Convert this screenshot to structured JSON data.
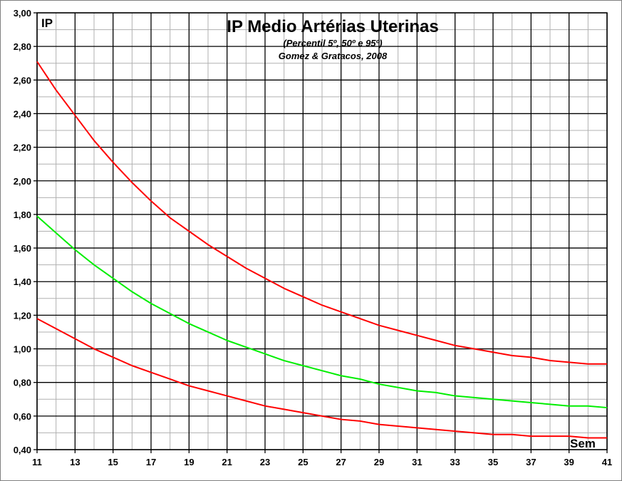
{
  "chart_data": {
    "type": "line",
    "title": "IP Medio Artérias Uterinas",
    "subtitle": "(Percentil 5º, 50º e 95º)",
    "source": "Gomez & Gratacos, 2008",
    "ylabel": "IP",
    "xlabel": "Sem",
    "xlim": [
      11,
      41
    ],
    "ylim": [
      0.4,
      3.0
    ],
    "x_ticks": [
      "11",
      "13",
      "15",
      "17",
      "19",
      "21",
      "23",
      "25",
      "27",
      "29",
      "31",
      "33",
      "35",
      "37",
      "39",
      "41"
    ],
    "y_ticks": [
      "0,40",
      "0,60",
      "0,80",
      "1,00",
      "1,20",
      "1,40",
      "1,60",
      "1,80",
      "2,00",
      "2,20",
      "2,40",
      "2,60",
      "2,80",
      "3,00"
    ],
    "x_minor_grid_step": 1,
    "y_minor_grid_step": 0.1,
    "grid": true,
    "x": [
      11,
      12,
      13,
      14,
      15,
      16,
      17,
      18,
      19,
      20,
      21,
      22,
      23,
      24,
      25,
      26,
      27,
      28,
      29,
      30,
      31,
      32,
      33,
      34,
      35,
      36,
      37,
      38,
      39,
      40,
      41
    ],
    "series": [
      {
        "color": "#ff0000",
        "values": [
          2.71,
          2.54,
          2.39,
          2.24,
          2.11,
          1.99,
          1.88,
          1.78,
          1.7,
          1.62,
          1.55,
          1.48,
          1.42,
          1.36,
          1.31,
          1.26,
          1.22,
          1.18,
          1.14,
          1.11,
          1.08,
          1.05,
          1.02,
          1.0,
          0.98,
          0.96,
          0.95,
          0.93,
          0.92,
          0.91,
          0.91
        ]
      },
      {
        "color": "#00ee00",
        "values": [
          1.79,
          1.69,
          1.59,
          1.5,
          1.42,
          1.34,
          1.27,
          1.21,
          1.15,
          1.1,
          1.05,
          1.01,
          0.97,
          0.93,
          0.9,
          0.87,
          0.84,
          0.82,
          0.79,
          0.77,
          0.75,
          0.74,
          0.72,
          0.71,
          0.7,
          0.69,
          0.68,
          0.67,
          0.66,
          0.66,
          0.65
        ]
      },
      {
        "color": "#ff0000",
        "values": [
          1.18,
          1.12,
          1.06,
          1.0,
          0.95,
          0.9,
          0.86,
          0.82,
          0.78,
          0.75,
          0.72,
          0.69,
          0.66,
          0.64,
          0.62,
          0.6,
          0.58,
          0.57,
          0.55,
          0.54,
          0.53,
          0.52,
          0.51,
          0.5,
          0.49,
          0.49,
          0.48,
          0.48,
          0.48,
          0.47,
          0.47
        ]
      }
    ]
  }
}
